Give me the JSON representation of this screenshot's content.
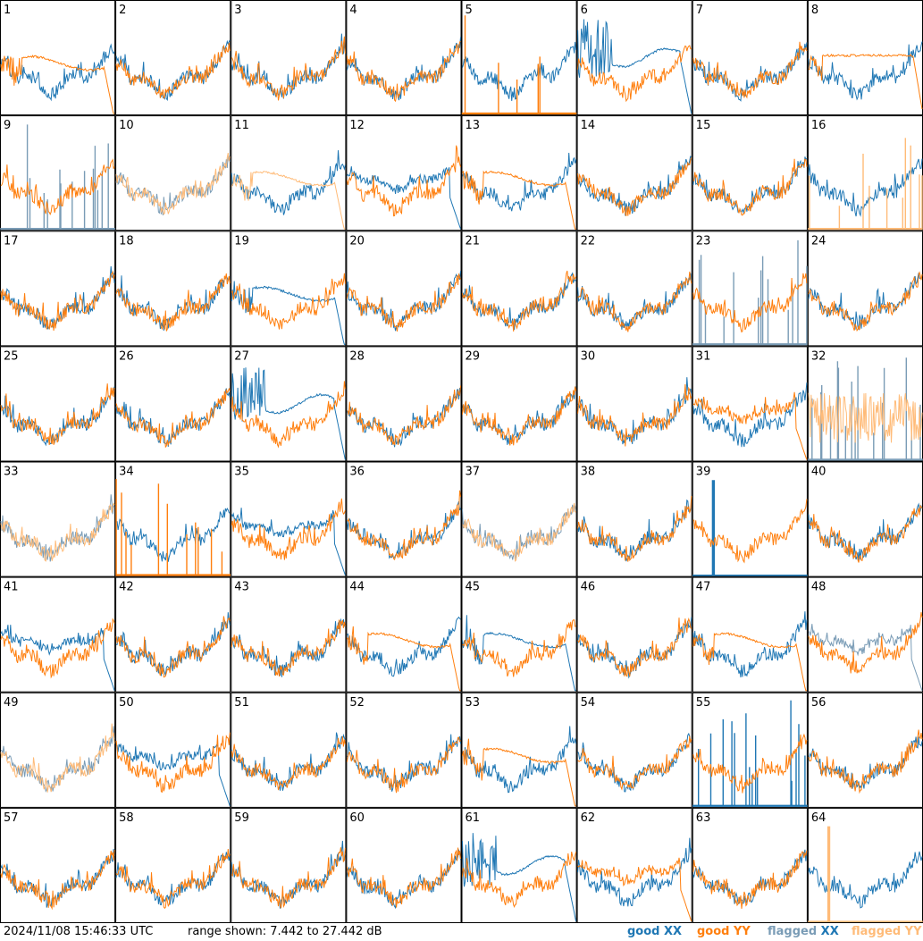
{
  "timestamp": "2024/11/08 15:46:33 UTC",
  "range_text": "range shown: 7.442 to 27.442 dB",
  "legend": [
    {
      "prefix": "good ",
      "pol": "XX",
      "color": "#1f77b4",
      "pol_color": "#1f77b4"
    },
    {
      "prefix": "good ",
      "pol": "YY",
      "color": "#ff7f0e",
      "pol_color": "#ff7f0e"
    },
    {
      "prefix": "flagged ",
      "pol": "XX",
      "color": "#7a9cb6",
      "pol_color": "#1f77b4"
    },
    {
      "prefix": "flagged ",
      "pol": "YY",
      "color": "#ffbb78",
      "pol_color": "#ffbb78"
    }
  ],
  "chart_data": {
    "type": "line",
    "ylim": [
      7.442,
      27.442
    ],
    "unit": "dB",
    "grid": {
      "rows": 8,
      "cols": 8
    },
    "series_colors": {
      "good_xx": "#1f77b4",
      "good_yy": "#ff7f0e",
      "flagged_xx": "#7a9cb6",
      "flagged_yy": "#ffbb78"
    },
    "panels": [
      {
        "id": "1",
        "xx": "good",
        "yy": "good",
        "xx_shape": "normal",
        "yy_shape": "sag_drop"
      },
      {
        "id": "2",
        "xx": "good",
        "yy": "good",
        "xx_shape": "normal",
        "yy_shape": "normal"
      },
      {
        "id": "3",
        "xx": "good",
        "yy": "good",
        "xx_shape": "normal",
        "yy_shape": "normal"
      },
      {
        "id": "4",
        "xx": "good",
        "yy": "good",
        "xx_shape": "normal",
        "yy_shape": "normal"
      },
      {
        "id": "5",
        "xx": "good",
        "yy": "good",
        "xx_shape": "normal",
        "yy_shape": "spikes"
      },
      {
        "id": "6",
        "xx": "good",
        "yy": "good",
        "xx_shape": "noisy_sag_drop",
        "yy_shape": "normal"
      },
      {
        "id": "7",
        "xx": "good",
        "yy": "good",
        "xx_shape": "normal",
        "yy_shape": "normal"
      },
      {
        "id": "8",
        "xx": "good",
        "yy": "good",
        "xx_shape": "normal",
        "yy_shape": "flat_drop"
      },
      {
        "id": "9",
        "xx": "flagged",
        "yy": "good",
        "xx_shape": "spikes",
        "yy_shape": "normal"
      },
      {
        "id": "10",
        "xx": "flagged",
        "yy": "flagged",
        "xx_shape": "normal",
        "yy_shape": "normal"
      },
      {
        "id": "11",
        "xx": "good",
        "yy": "flagged",
        "xx_shape": "normal",
        "yy_shape": "sag_drop"
      },
      {
        "id": "12",
        "xx": "good",
        "yy": "good",
        "xx_shape": "low_drop",
        "yy_shape": "normal"
      },
      {
        "id": "13",
        "xx": "good",
        "yy": "good",
        "xx_shape": "normal",
        "yy_shape": "sag_drop"
      },
      {
        "id": "14",
        "xx": "good",
        "yy": "good",
        "xx_shape": "normal",
        "yy_shape": "normal"
      },
      {
        "id": "15",
        "xx": "good",
        "yy": "good",
        "xx_shape": "normal",
        "yy_shape": "normal"
      },
      {
        "id": "16",
        "xx": "good",
        "yy": "flagged",
        "xx_shape": "normal",
        "yy_shape": "spikes"
      },
      {
        "id": "17",
        "xx": "good",
        "yy": "good",
        "xx_shape": "normal",
        "yy_shape": "normal"
      },
      {
        "id": "18",
        "xx": "good",
        "yy": "good",
        "xx_shape": "normal",
        "yy_shape": "normal"
      },
      {
        "id": "19",
        "xx": "good",
        "yy": "good",
        "xx_shape": "sag_drop",
        "yy_shape": "normal"
      },
      {
        "id": "20",
        "xx": "good",
        "yy": "good",
        "xx_shape": "normal",
        "yy_shape": "normal"
      },
      {
        "id": "21",
        "xx": "good",
        "yy": "good",
        "xx_shape": "normal",
        "yy_shape": "normal"
      },
      {
        "id": "22",
        "xx": "good",
        "yy": "good",
        "xx_shape": "normal",
        "yy_shape": "normal"
      },
      {
        "id": "23",
        "xx": "flagged",
        "yy": "good",
        "xx_shape": "spikes",
        "yy_shape": "normal"
      },
      {
        "id": "24",
        "xx": "good",
        "yy": "good",
        "xx_shape": "normal",
        "yy_shape": "normal"
      },
      {
        "id": "25",
        "xx": "good",
        "yy": "good",
        "xx_shape": "normal",
        "yy_shape": "normal"
      },
      {
        "id": "26",
        "xx": "good",
        "yy": "good",
        "xx_shape": "normal",
        "yy_shape": "normal"
      },
      {
        "id": "27",
        "xx": "good",
        "yy": "good",
        "xx_shape": "noisy_sag_drop",
        "yy_shape": "normal"
      },
      {
        "id": "28",
        "xx": "good",
        "yy": "good",
        "xx_shape": "normal",
        "yy_shape": "normal"
      },
      {
        "id": "29",
        "xx": "good",
        "yy": "good",
        "xx_shape": "normal",
        "yy_shape": "normal"
      },
      {
        "id": "30",
        "xx": "good",
        "yy": "good",
        "xx_shape": "normal",
        "yy_shape": "normal"
      },
      {
        "id": "31",
        "xx": "good",
        "yy": "good",
        "xx_shape": "normal",
        "yy_shape": "low_drop"
      },
      {
        "id": "32",
        "xx": "flagged",
        "yy": "flagged",
        "xx_shape": "spikes",
        "yy_shape": "noisy_low"
      },
      {
        "id": "33",
        "xx": "flagged",
        "yy": "flagged",
        "xx_shape": "normal",
        "yy_shape": "normal"
      },
      {
        "id": "34",
        "xx": "good",
        "yy": "good",
        "xx_shape": "normal",
        "yy_shape": "spikes"
      },
      {
        "id": "35",
        "xx": "good",
        "yy": "good",
        "xx_shape": "low_drop",
        "yy_shape": "normal"
      },
      {
        "id": "36",
        "xx": "good",
        "yy": "good",
        "xx_shape": "normal",
        "yy_shape": "normal"
      },
      {
        "id": "37",
        "xx": "flagged",
        "yy": "flagged",
        "xx_shape": "normal",
        "yy_shape": "normal"
      },
      {
        "id": "38",
        "xx": "good",
        "yy": "good",
        "xx_shape": "normal",
        "yy_shape": "normal"
      },
      {
        "id": "39",
        "xx": "good",
        "yy": "good",
        "xx_shape": "spike_single",
        "yy_shape": "normal"
      },
      {
        "id": "40",
        "xx": "good",
        "yy": "good",
        "xx_shape": "normal",
        "yy_shape": "normal"
      },
      {
        "id": "41",
        "xx": "good",
        "yy": "good",
        "xx_shape": "low_drop",
        "yy_shape": "normal"
      },
      {
        "id": "42",
        "xx": "good",
        "yy": "good",
        "xx_shape": "normal",
        "yy_shape": "normal"
      },
      {
        "id": "43",
        "xx": "good",
        "yy": "good",
        "xx_shape": "normal",
        "yy_shape": "normal"
      },
      {
        "id": "44",
        "xx": "good",
        "yy": "good",
        "xx_shape": "normal",
        "yy_shape": "sag_drop"
      },
      {
        "id": "45",
        "xx": "good",
        "yy": "good",
        "xx_shape": "sag_drop",
        "yy_shape": "normal"
      },
      {
        "id": "46",
        "xx": "good",
        "yy": "good",
        "xx_shape": "normal",
        "yy_shape": "normal"
      },
      {
        "id": "47",
        "xx": "good",
        "yy": "good",
        "xx_shape": "normal",
        "yy_shape": "sag_drop"
      },
      {
        "id": "48",
        "xx": "flagged",
        "yy": "good",
        "xx_shape": "low_drop",
        "yy_shape": "normal"
      },
      {
        "id": "49",
        "xx": "flagged",
        "yy": "flagged",
        "xx_shape": "normal",
        "yy_shape": "normal"
      },
      {
        "id": "50",
        "xx": "good",
        "yy": "good",
        "xx_shape": "low_drop",
        "yy_shape": "normal"
      },
      {
        "id": "51",
        "xx": "good",
        "yy": "good",
        "xx_shape": "normal",
        "yy_shape": "normal"
      },
      {
        "id": "52",
        "xx": "good",
        "yy": "good",
        "xx_shape": "normal",
        "yy_shape": "normal"
      },
      {
        "id": "53",
        "xx": "good",
        "yy": "good",
        "xx_shape": "normal",
        "yy_shape": "sag_drop"
      },
      {
        "id": "54",
        "xx": "good",
        "yy": "good",
        "xx_shape": "normal",
        "yy_shape": "normal"
      },
      {
        "id": "55",
        "xx": "good",
        "yy": "good",
        "xx_shape": "spikes",
        "yy_shape": "normal"
      },
      {
        "id": "56",
        "xx": "good",
        "yy": "good",
        "xx_shape": "normal",
        "yy_shape": "normal"
      },
      {
        "id": "57",
        "xx": "good",
        "yy": "good",
        "xx_shape": "normal",
        "yy_shape": "normal"
      },
      {
        "id": "58",
        "xx": "good",
        "yy": "good",
        "xx_shape": "normal",
        "yy_shape": "normal"
      },
      {
        "id": "59",
        "xx": "good",
        "yy": "good",
        "xx_shape": "normal",
        "yy_shape": "normal"
      },
      {
        "id": "60",
        "xx": "good",
        "yy": "good",
        "xx_shape": "normal",
        "yy_shape": "normal"
      },
      {
        "id": "61",
        "xx": "good",
        "yy": "good",
        "xx_shape": "noisy_sag_drop",
        "yy_shape": "normal"
      },
      {
        "id": "62",
        "xx": "good",
        "yy": "good",
        "xx_shape": "normal",
        "yy_shape": "low_drop"
      },
      {
        "id": "63",
        "xx": "good",
        "yy": "good",
        "xx_shape": "normal",
        "yy_shape": "normal"
      },
      {
        "id": "64",
        "xx": "good",
        "yy": "flagged",
        "xx_shape": "normal",
        "yy_shape": "spike_single"
      }
    ]
  }
}
